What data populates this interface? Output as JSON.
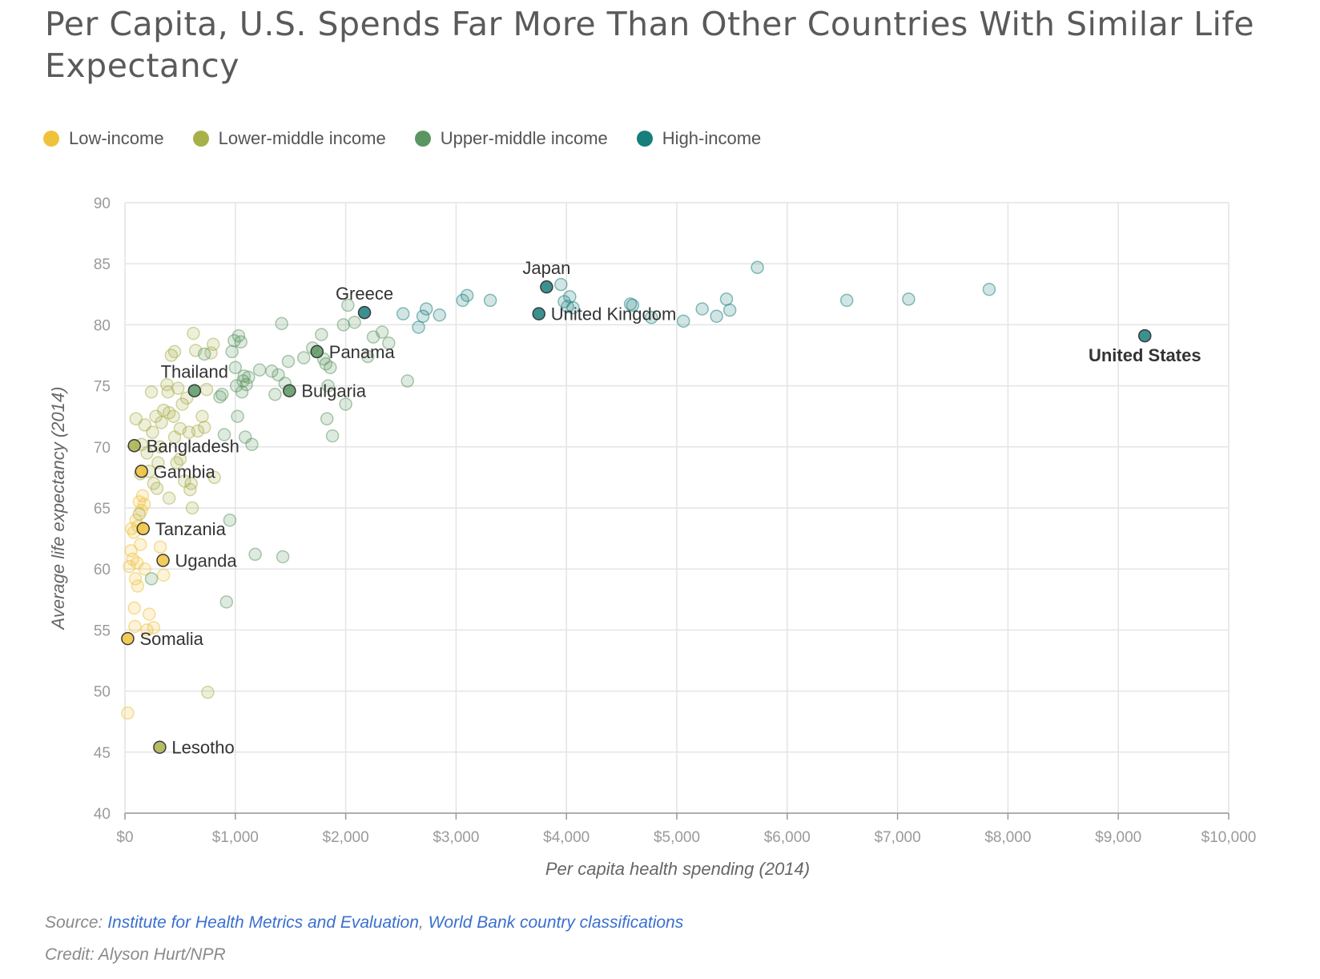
{
  "title": "Per Capita, U.S. Spends Far More Than Other Countries With Similar Life Expectancy",
  "legend": [
    {
      "label": "Low-income",
      "color": "#f0c23b"
    },
    {
      "label": "Lower-middle income",
      "color": "#a8b04a"
    },
    {
      "label": "Upper-middle income",
      "color": "#5b9660"
    },
    {
      "label": "High-income",
      "color": "#177e7c"
    }
  ],
  "footer": {
    "source_label": "Source:",
    "source_link_1": "Institute for Health Metrics and Evaluation",
    "separator": ",",
    "source_link_2": "World Bank country classifications",
    "credit": "Credit: Alyson Hurt/NPR"
  },
  "chart_data": {
    "type": "scatter",
    "title": "Per Capita, U.S. Spends Far More Than Other Countries With Similar Life Expectancy",
    "xlabel": "Per capita health spending (2014)",
    "ylabel": "Average life expectancy (2014)",
    "xlim": [
      0,
      10000
    ],
    "ylim": [
      40,
      90
    ],
    "grid": true,
    "legend_position": "top-left",
    "x_ticks": [
      {
        "value": 0,
        "label": "$0"
      },
      {
        "value": 1000,
        "label": "$1,000"
      },
      {
        "value": 2000,
        "label": "$2,000"
      },
      {
        "value": 3000,
        "label": "$3,000"
      },
      {
        "value": 4000,
        "label": "$4,000"
      },
      {
        "value": 5000,
        "label": "$5,000"
      },
      {
        "value": 6000,
        "label": "$6,000"
      },
      {
        "value": 7000,
        "label": "$7,000"
      },
      {
        "value": 8000,
        "label": "$8,000"
      },
      {
        "value": 9000,
        "label": "$9,000"
      },
      {
        "value": 10000,
        "label": "$10,000"
      }
    ],
    "y_ticks": [
      40,
      45,
      50,
      55,
      60,
      65,
      70,
      75,
      80,
      85,
      90
    ],
    "series": [
      {
        "name": "Low-income",
        "color": "#f0c23b",
        "points": [
          [
            25,
            48.2
          ],
          [
            40,
            60.2
          ],
          [
            55,
            61.5
          ],
          [
            70,
            60.8
          ],
          [
            85,
            56.8
          ],
          [
            90,
            55.3
          ],
          [
            95,
            59.2
          ],
          [
            110,
            60.5
          ],
          [
            120,
            63.5
          ],
          [
            130,
            65.5
          ],
          [
            140,
            62.0
          ],
          [
            150,
            64.8
          ],
          [
            160,
            66.0
          ],
          [
            100,
            64.0
          ],
          [
            60,
            63.3
          ],
          [
            180,
            60.0
          ],
          [
            200,
            55.0
          ],
          [
            220,
            56.3
          ],
          [
            260,
            55.2
          ],
          [
            320,
            61.8
          ],
          [
            350,
            59.5
          ],
          [
            115,
            58.6
          ],
          [
            175,
            65.3
          ],
          [
            80,
            63.0
          ]
        ]
      },
      {
        "name": "Lower-middle income",
        "color": "#a8b04a",
        "points": [
          [
            100,
            72.3
          ],
          [
            150,
            70.2
          ],
          [
            180,
            71.8
          ],
          [
            200,
            69.5
          ],
          [
            220,
            68.0
          ],
          [
            250,
            71.2
          ],
          [
            260,
            67.0
          ],
          [
            280,
            72.5
          ],
          [
            300,
            68.7
          ],
          [
            320,
            70.0
          ],
          [
            350,
            73.0
          ],
          [
            380,
            75.1
          ],
          [
            390,
            74.5
          ],
          [
            400,
            72.8
          ],
          [
            420,
            77.5
          ],
          [
            440,
            72.5
          ],
          [
            450,
            70.8
          ],
          [
            480,
            74.8
          ],
          [
            500,
            71.5
          ],
          [
            520,
            73.5
          ],
          [
            540,
            67.2
          ],
          [
            560,
            74.0
          ],
          [
            580,
            71.2
          ],
          [
            600,
            67.0
          ],
          [
            620,
            79.3
          ],
          [
            640,
            77.9
          ],
          [
            660,
            71.3
          ],
          [
            700,
            72.5
          ],
          [
            720,
            71.6
          ],
          [
            740,
            74.7
          ],
          [
            780,
            77.7
          ],
          [
            800,
            78.4
          ],
          [
            810,
            67.5
          ],
          [
            450,
            77.8
          ],
          [
            470,
            68.7
          ],
          [
            290,
            66.6
          ],
          [
            140,
            67.8
          ],
          [
            130,
            64.5
          ],
          [
            240,
            74.5
          ],
          [
            330,
            72.0
          ],
          [
            500,
            69.0
          ],
          [
            750,
            49.9
          ],
          [
            610,
            65.0
          ],
          [
            590,
            66.5
          ],
          [
            400,
            65.8
          ]
        ]
      },
      {
        "name": "Upper-middle income",
        "color": "#5b9660",
        "points": [
          [
            860,
            74.1
          ],
          [
            900,
            71.0
          ],
          [
            920,
            57.3
          ],
          [
            950,
            64.0
          ],
          [
            970,
            77.8
          ],
          [
            990,
            78.7
          ],
          [
            1000,
            76.5
          ],
          [
            1010,
            75.0
          ],
          [
            1020,
            72.5
          ],
          [
            1030,
            79.1
          ],
          [
            1050,
            78.6
          ],
          [
            1060,
            74.5
          ],
          [
            1070,
            75.4
          ],
          [
            1080,
            75.8
          ],
          [
            1090,
            70.8
          ],
          [
            1100,
            75.1
          ],
          [
            1120,
            75.7
          ],
          [
            1150,
            70.2
          ],
          [
            1180,
            61.2
          ],
          [
            1220,
            76.3
          ],
          [
            1330,
            76.2
          ],
          [
            1360,
            74.3
          ],
          [
            1390,
            75.9
          ],
          [
            1420,
            80.1
          ],
          [
            1430,
            61.0
          ],
          [
            1450,
            75.2
          ],
          [
            1480,
            77.0
          ],
          [
            1620,
            77.3
          ],
          [
            1700,
            78.1
          ],
          [
            1780,
            79.2
          ],
          [
            1800,
            77.2
          ],
          [
            1820,
            76.8
          ],
          [
            1830,
            72.3
          ],
          [
            1840,
            75.0
          ],
          [
            1860,
            76.5
          ],
          [
            1880,
            70.9
          ],
          [
            1980,
            80.0
          ],
          [
            2000,
            73.5
          ],
          [
            2020,
            81.6
          ],
          [
            2080,
            80.2
          ],
          [
            2200,
            77.4
          ],
          [
            2250,
            79.0
          ],
          [
            2330,
            79.4
          ],
          [
            2390,
            78.5
          ],
          [
            2560,
            75.4
          ],
          [
            240,
            59.2
          ],
          [
            880,
            74.3
          ],
          [
            720,
            77.6
          ]
        ]
      },
      {
        "name": "High-income",
        "color": "#177e7c",
        "points": [
          [
            2520,
            80.9
          ],
          [
            2660,
            79.8
          ],
          [
            2700,
            80.7
          ],
          [
            2730,
            81.3
          ],
          [
            2850,
            80.8
          ],
          [
            3060,
            82.0
          ],
          [
            3100,
            82.4
          ],
          [
            3310,
            82.0
          ],
          [
            3950,
            83.3
          ],
          [
            3980,
            81.9
          ],
          [
            4010,
            81.5
          ],
          [
            4030,
            82.3
          ],
          [
            4060,
            81.4
          ],
          [
            4580,
            81.7
          ],
          [
            4600,
            81.6
          ],
          [
            4770,
            80.6
          ],
          [
            5060,
            80.3
          ],
          [
            5230,
            81.3
          ],
          [
            5360,
            80.7
          ],
          [
            5450,
            82.1
          ],
          [
            5480,
            81.2
          ],
          [
            5730,
            84.7
          ],
          [
            6540,
            82.0
          ],
          [
            7100,
            82.1
          ],
          [
            7830,
            82.9
          ]
        ]
      }
    ],
    "highlighted": [
      {
        "name": "Japan",
        "x": 3820,
        "y": 83.1,
        "group": "High-income",
        "label_pos": "above"
      },
      {
        "name": "Greece",
        "x": 2170,
        "y": 81.0,
        "group": "High-income",
        "label_pos": "above"
      },
      {
        "name": "United Kingdom",
        "x": 3750,
        "y": 80.9,
        "group": "High-income",
        "label_pos": "right"
      },
      {
        "name": "United States",
        "x": 9240,
        "y": 79.1,
        "group": "High-income",
        "label_pos": "below",
        "bold": true
      },
      {
        "name": "Panama",
        "x": 1740,
        "y": 77.8,
        "group": "Upper-middle income",
        "label_pos": "right"
      },
      {
        "name": "Thailand",
        "x": 630,
        "y": 74.6,
        "group": "Upper-middle income",
        "label_pos": "above"
      },
      {
        "name": "Bulgaria",
        "x": 1490,
        "y": 74.6,
        "group": "Upper-middle income",
        "label_pos": "right"
      },
      {
        "name": "Bangladesh",
        "x": 85,
        "y": 70.1,
        "group": "Lower-middle income",
        "label_pos": "right"
      },
      {
        "name": "Gambia",
        "x": 150,
        "y": 68.0,
        "group": "Low-income",
        "label_pos": "right"
      },
      {
        "name": "Tanzania",
        "x": 165,
        "y": 63.3,
        "group": "Low-income",
        "label_pos": "right"
      },
      {
        "name": "Uganda",
        "x": 345,
        "y": 60.7,
        "group": "Low-income",
        "label_pos": "right"
      },
      {
        "name": "Somalia",
        "x": 25,
        "y": 54.3,
        "group": "Low-income",
        "label_pos": "right"
      },
      {
        "name": "Lesotho",
        "x": 315,
        "y": 45.4,
        "group": "Lower-middle income",
        "label_pos": "right"
      }
    ]
  }
}
